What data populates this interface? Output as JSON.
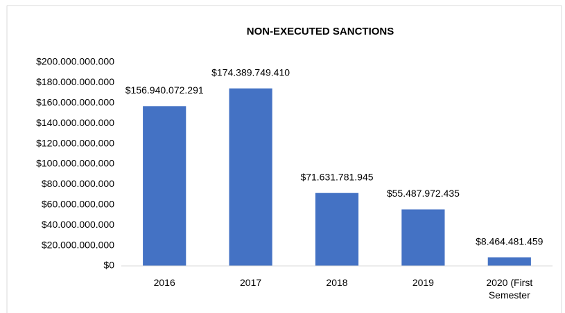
{
  "chart_data": {
    "type": "bar",
    "title": "NON-EXECUTED SANCTIONS",
    "categories": [
      "2016",
      "2017",
      "2018",
      "2019",
      "2020 (First Semester"
    ],
    "values": [
      156940072291,
      174389749410,
      71631781945,
      55487972435,
      8464481459
    ],
    "value_labels": [
      "$156.940.072.291",
      "$174.389.749.410",
      "$71.631.781.945",
      "$55.487.972.435",
      "$8.464.481.459"
    ],
    "color": "#4472c4",
    "ylim": [
      0,
      200000000000
    ],
    "yticks": [
      {
        "value": 0,
        "label": "$0"
      },
      {
        "value": 20000000000,
        "label": "$20.000.000.000"
      },
      {
        "value": 40000000000,
        "label": "$40.000.000.000"
      },
      {
        "value": 60000000000,
        "label": "$60.000.000.000"
      },
      {
        "value": 80000000000,
        "label": "$80.000.000.000"
      },
      {
        "value": 100000000000,
        "label": "$100.000.000.000"
      },
      {
        "value": 120000000000,
        "label": "$120.000.000.000"
      },
      {
        "value": 140000000000,
        "label": "$140.000.000.000"
      },
      {
        "value": 160000000000,
        "label": "$160.000.000.000"
      },
      {
        "value": 180000000000,
        "label": "$180.000.000.000"
      },
      {
        "value": 200000000000,
        "label": "$200.000.000.000"
      }
    ],
    "grid": false
  }
}
